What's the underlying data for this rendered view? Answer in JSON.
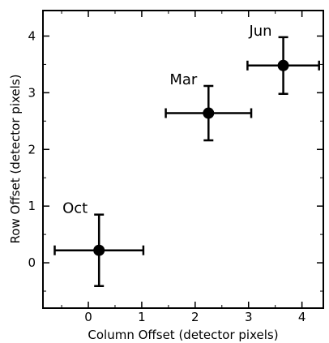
{
  "chart_data": {
    "type": "scatter",
    "title": "",
    "xlabel": "Column Offset (detector pixels)",
    "ylabel": "Row Offset (detector pixels)",
    "xlim": [
      -0.85,
      4.4
    ],
    "ylim": [
      -0.8,
      4.45
    ],
    "xticks": [
      "0",
      "1",
      "2",
      "3",
      "4"
    ],
    "yticks": [
      "0",
      "1",
      "2",
      "3",
      "4"
    ],
    "grid": false,
    "legend": "none",
    "points": [
      {
        "label": "Oct",
        "x": 0.2,
        "y": 0.22,
        "xerr": 0.83,
        "yerr": 0.63
      },
      {
        "label": "Mar",
        "x": 2.25,
        "y": 2.64,
        "xerr": 0.8,
        "yerr": 0.48
      },
      {
        "label": "Jun",
        "x": 3.65,
        "y": 3.48,
        "xerr": 0.67,
        "yerr": 0.5
      }
    ],
    "colors": {
      "marker": "#000000",
      "axis": "#000000",
      "background": "#ffffff"
    }
  }
}
